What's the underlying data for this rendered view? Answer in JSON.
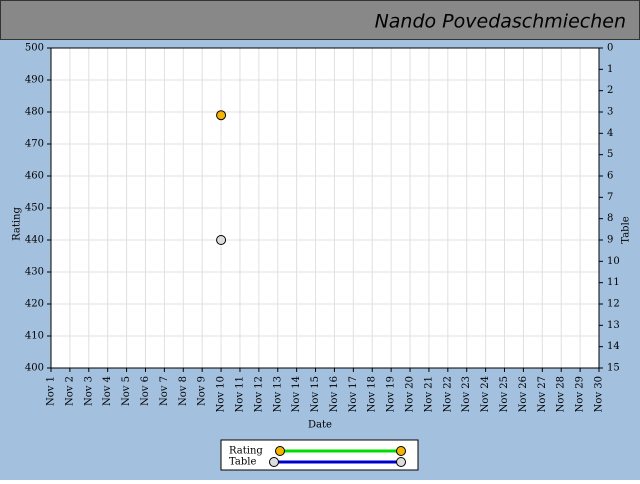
{
  "chart_data": {
    "type": "line",
    "title": "Nando Povedaschmiechen",
    "x_label": "Date",
    "y_label": "Rating",
    "y2_label": "Table",
    "categories": [
      "Nov 1",
      "Nov 2",
      "Nov 3",
      "Nov 4",
      "Nov 5",
      "Nov 6",
      "Nov 7",
      "Nov 8",
      "Nov 9",
      "Nov 10",
      "Nov 11",
      "Nov 12",
      "Nov 13",
      "Nov 14",
      "Nov 15",
      "Nov 16",
      "Nov 17",
      "Nov 18",
      "Nov 19",
      "Nov 20",
      "Nov 21",
      "Nov 22",
      "Nov 23",
      "Nov 24",
      "Nov 25",
      "Nov 26",
      "Nov 27",
      "Nov 28",
      "Nov 29",
      "Nov 30"
    ],
    "series": [
      {
        "name": "Rating",
        "color": "#00dd00",
        "marker_color": "#f5b400",
        "values": [
          null,
          null,
          null,
          null,
          null,
          null,
          null,
          null,
          null,
          479,
          null,
          null,
          null,
          null,
          null,
          null,
          null,
          null,
          null,
          null,
          null,
          null,
          null,
          null,
          null,
          null,
          null,
          null,
          null,
          null
        ]
      },
      {
        "name": "Table",
        "color": "#0000cc",
        "marker_color": "#dddddd",
        "axis": "y2",
        "values": [
          null,
          null,
          null,
          null,
          null,
          null,
          null,
          null,
          null,
          9,
          null,
          null,
          null,
          null,
          null,
          null,
          null,
          null,
          null,
          null,
          null,
          null,
          null,
          null,
          null,
          null,
          null,
          null,
          null,
          null
        ]
      }
    ],
    "ylim": [
      400,
      500
    ],
    "yticks": [
      400,
      410,
      420,
      430,
      440,
      450,
      460,
      470,
      480,
      490,
      500
    ],
    "y2lim": [
      15,
      0
    ],
    "y2ticks": [
      0,
      1,
      2,
      3,
      4,
      5,
      6,
      7,
      8,
      9,
      10,
      11,
      12,
      13,
      14,
      15
    ],
    "grid": true
  }
}
